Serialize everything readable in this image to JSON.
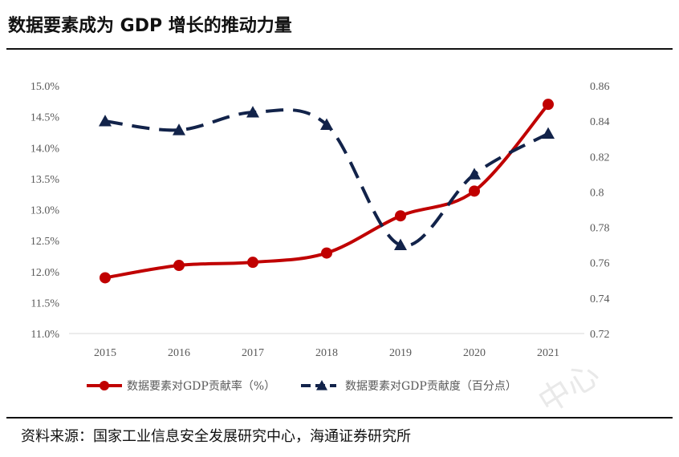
{
  "header": {
    "title": "数据要素成为 GDP 增长的推动力量"
  },
  "footer": {
    "source": "资料来源：国家工业信息安全发展研究中心，海通证券研究所"
  },
  "chart_data": {
    "type": "line",
    "title": "数据要素成为 GDP 增长的推动力量",
    "categories": [
      "2015",
      "2016",
      "2017",
      "2018",
      "2019",
      "2020",
      "2021"
    ],
    "y_left": {
      "ylim": [
        11.0,
        15.0
      ],
      "ticks": [
        11.0,
        11.5,
        12.0,
        12.5,
        13.0,
        13.5,
        14.0,
        14.5,
        15.0
      ],
      "tick_labels": [
        "11.0%",
        "11.5%",
        "12.0%",
        "12.5%",
        "13.0%",
        "13.5%",
        "14.0%",
        "14.5%",
        "15.0%"
      ]
    },
    "y_right": {
      "ylim": [
        0.72,
        0.86
      ],
      "ticks": [
        0.72,
        0.74,
        0.76,
        0.78,
        0.8,
        0.82,
        0.84,
        0.86
      ],
      "tick_labels": [
        "0.72",
        "0.74",
        "0.76",
        "0.78",
        "0.8",
        "0.82",
        "0.84",
        "0.86"
      ]
    },
    "series": [
      {
        "name": "数据要素对GDP贡献率（%）",
        "axis": "left",
        "values": [
          11.9,
          12.1,
          12.15,
          12.3,
          12.9,
          13.3,
          14.7
        ],
        "color": "#c00000",
        "style": "solid",
        "marker": "circle"
      },
      {
        "name": "数据要素对GDP贡献度（百分点）",
        "axis": "right",
        "values": [
          0.84,
          0.835,
          0.845,
          0.838,
          0.77,
          0.81,
          0.833
        ],
        "color": "#12234a",
        "style": "dashed",
        "marker": "triangle"
      }
    ],
    "legend_position": "bottom"
  }
}
